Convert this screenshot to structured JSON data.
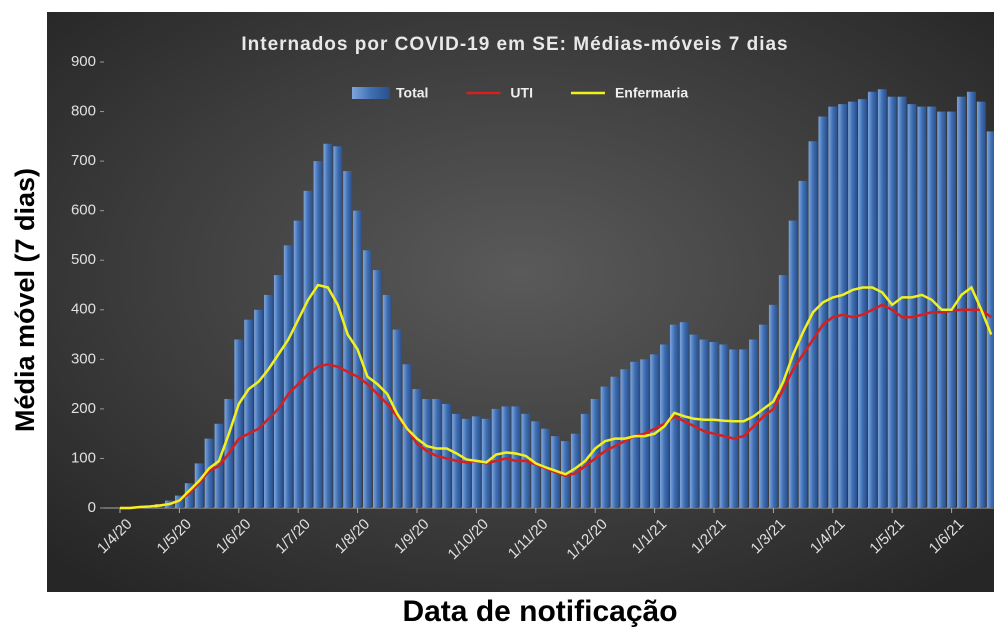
{
  "chart_data": {
    "type": "bar_line",
    "title": "Internados por COVID-19 em SE: Médias-móveis 7 dias",
    "x_label": "Data de notificação",
    "y_label": "Média móvel (7 dias)",
    "categories": [
      "1/4/20",
      null,
      null,
      null,
      null,
      null,
      "1/5/20",
      null,
      null,
      null,
      null,
      null,
      "1/6/20",
      null,
      null,
      null,
      null,
      null,
      "1/7/20",
      null,
      null,
      null,
      null,
      null,
      "1/8/20",
      null,
      null,
      null,
      null,
      null,
      "1/9/20",
      null,
      null,
      null,
      null,
      null,
      "1/10/20",
      null,
      null,
      null,
      null,
      null,
      "1/11/20",
      null,
      null,
      null,
      null,
      null,
      "1/12/20",
      null,
      null,
      null,
      null,
      null,
      "1/1/21",
      null,
      null,
      null,
      null,
      null,
      "1/2/21",
      null,
      null,
      null,
      null,
      null,
      "1/3/21",
      null,
      null,
      null,
      null,
      null,
      "1/4/21",
      null,
      null,
      null,
      null,
      null,
      "1/5/21",
      null,
      null,
      null,
      null,
      null,
      "1/6/21",
      null,
      null,
      null,
      null
    ],
    "series": [
      {
        "name": "Total",
        "color": "#3f6fb4",
        "kind": "bar",
        "values": [
          0,
          2,
          3,
          5,
          8,
          15,
          25,
          50,
          90,
          140,
          170,
          220,
          340,
          380,
          400,
          430,
          470,
          530,
          580,
          640,
          700,
          735,
          730,
          680,
          600,
          520,
          480,
          430,
          360,
          290,
          240,
          220,
          220,
          210,
          190,
          180,
          185,
          180,
          200,
          205,
          205,
          190,
          175,
          160,
          145,
          135,
          150,
          190,
          220,
          245,
          265,
          280,
          295,
          300,
          310,
          330,
          370,
          375,
          350,
          340,
          335,
          330,
          320,
          320,
          340,
          370,
          410,
          470,
          580,
          660,
          740,
          790,
          810,
          815,
          820,
          825,
          840,
          845,
          830,
          830,
          815,
          810,
          810,
          800,
          800,
          830,
          840,
          820,
          760
        ]
      },
      {
        "name": "UTI",
        "color": "#d42020",
        "kind": "line",
        "values": [
          0,
          0,
          2,
          3,
          5,
          8,
          15,
          30,
          50,
          75,
          85,
          110,
          140,
          150,
          160,
          180,
          200,
          230,
          250,
          270,
          285,
          290,
          285,
          275,
          265,
          250,
          230,
          210,
          185,
          160,
          130,
          115,
          105,
          100,
          95,
          92,
          95,
          90,
          95,
          100,
          95,
          95,
          88,
          80,
          72,
          65,
          70,
          85,
          100,
          115,
          125,
          135,
          145,
          150,
          160,
          170,
          185,
          175,
          165,
          155,
          150,
          145,
          140,
          145,
          165,
          185,
          200,
          240,
          280,
          310,
          340,
          370,
          385,
          390,
          385,
          390,
          400,
          410,
          400,
          385,
          385,
          390,
          395,
          395,
          398,
          400,
          400,
          400,
          385
        ]
      },
      {
        "name": "Enfermaria",
        "color": "#f2f01e",
        "kind": "line",
        "values": [
          0,
          0,
          2,
          3,
          5,
          8,
          15,
          35,
          55,
          80,
          95,
          150,
          210,
          240,
          255,
          280,
          310,
          340,
          380,
          420,
          450,
          445,
          410,
          350,
          320,
          265,
          250,
          230,
          190,
          160,
          140,
          125,
          120,
          120,
          110,
          98,
          95,
          92,
          108,
          112,
          110,
          105,
          90,
          82,
          75,
          68,
          80,
          95,
          120,
          135,
          140,
          140,
          145,
          145,
          150,
          165,
          192,
          185,
          180,
          178,
          178,
          176,
          175,
          175,
          185,
          200,
          215,
          255,
          310,
          355,
          395,
          415,
          425,
          430,
          440,
          445,
          445,
          435,
          410,
          425,
          425,
          430,
          420,
          400,
          400,
          430,
          445,
          400,
          350
        ]
      }
    ],
    "ylim": [
      0,
      900
    ],
    "yticks": [
      0,
      100,
      200,
      300,
      400,
      500,
      600,
      700,
      800,
      900
    ]
  }
}
